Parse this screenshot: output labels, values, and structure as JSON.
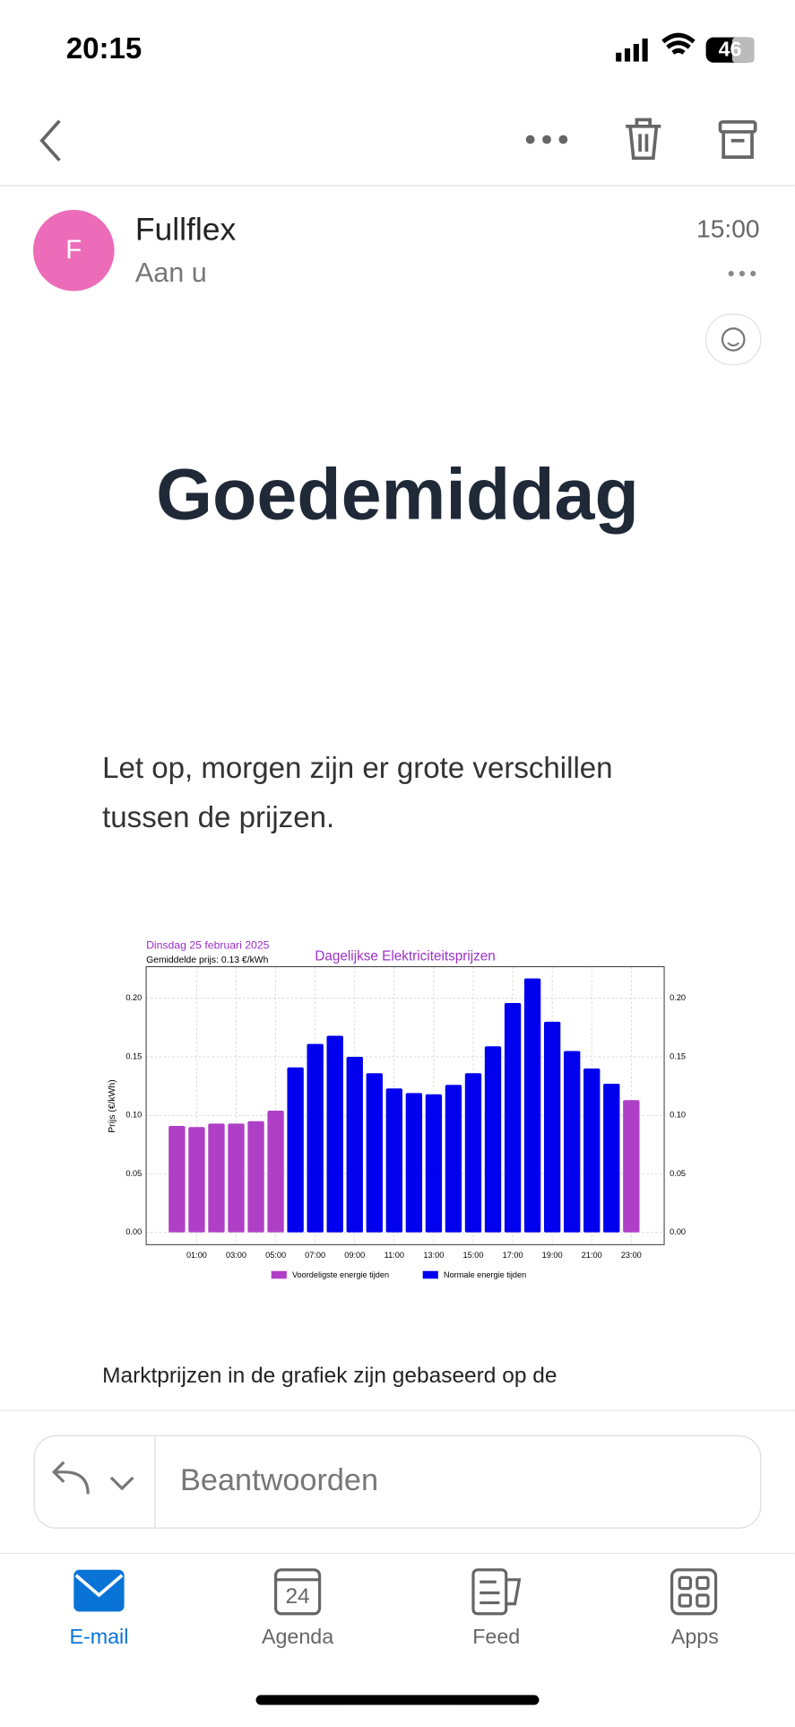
{
  "status_bar": {
    "time": "20:15",
    "battery": "46"
  },
  "sender": {
    "initial": "F",
    "name": "Fullflex",
    "to": "Aan u",
    "time": "15:00"
  },
  "email": {
    "heading": "Goedemiddag",
    "paragraph": [
      "Let op, morgen zijn er grote verschillen",
      "tussen de prijzen."
    ],
    "footer_text": "Marktprijzen in de grafiek zijn gebaseerd op de"
  },
  "chart_data": {
    "type": "bar",
    "date": "Dinsdag 25 februari 2025",
    "subtitle": "Gemiddelde prijs: 0.13 €/kWh",
    "title": "Dagelijkse Elektriciteitsprijzen",
    "y_label": "Prijs (€/kWh)",
    "categories": [
      null,
      "01:00",
      null,
      "03:00",
      null,
      "05:00",
      null,
      "07:00",
      null,
      "09:00",
      null,
      "11:00",
      null,
      "13:00",
      null,
      "15:00",
      null,
      "17:00",
      null,
      "19:00",
      null,
      "21:00",
      null,
      "23:00"
    ],
    "series": [
      {
        "name": "Voordeligste energie tijden",
        "color": "#b03fc8",
        "values": [
          0.091,
          0.09,
          0.093,
          0.093,
          0.095,
          0.104,
          null,
          null,
          null,
          null,
          null,
          null,
          null,
          null,
          null,
          null,
          null,
          null,
          null,
          null,
          null,
          null,
          null,
          0.113
        ]
      },
      {
        "name": "Normale energie tijden",
        "color": "#0000ee",
        "values": [
          null,
          null,
          null,
          null,
          null,
          null,
          0.141,
          0.161,
          0.168,
          0.15,
          0.136,
          0.123,
          0.119,
          0.118,
          0.126,
          0.136,
          0.159,
          0.196,
          0.217,
          0.18,
          0.155,
          0.14,
          0.127,
          null
        ]
      }
    ],
    "ylim": [
      -0.0105,
      0.227
    ],
    "yticks": [
      {
        "value": 0,
        "label": "0.00"
      },
      {
        "value": 0.05,
        "label": "0.05"
      },
      {
        "value": 0.1,
        "label": "0.10"
      },
      {
        "value": 0.15,
        "label": "0.15"
      },
      {
        "value": 0.2,
        "label": "0.20"
      }
    ],
    "grid": true
  },
  "reply": {
    "placeholder": "Beantwoorden"
  },
  "tabs": [
    {
      "label": "E-mail"
    },
    {
      "label": "Agenda",
      "icon_text": "24"
    },
    {
      "label": "Feed"
    },
    {
      "label": "Apps"
    }
  ]
}
